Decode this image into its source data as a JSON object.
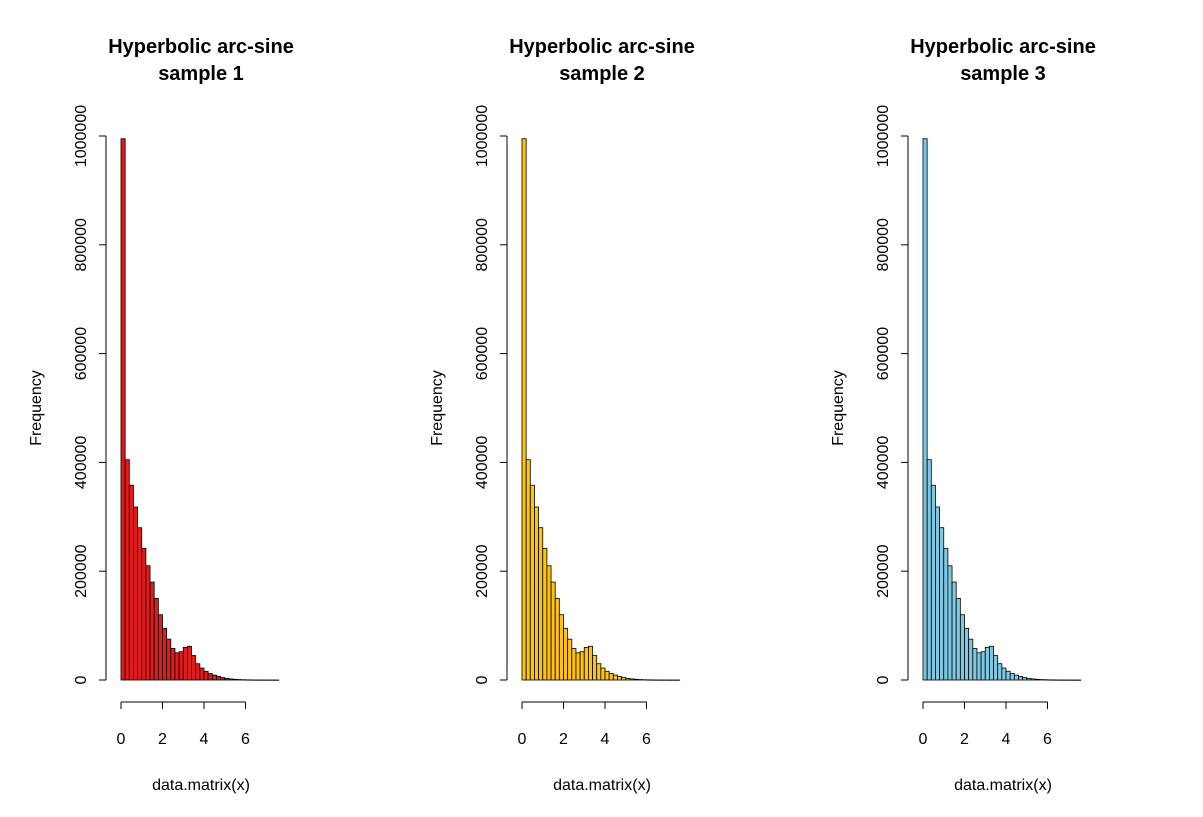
{
  "chart_data": [
    {
      "type": "bar",
      "title_line1": "Hyperbolic arc-sine",
      "title_line2": "sample 1",
      "xlabel": "data.matrix(x)",
      "ylabel": "Frequency",
      "fill_color": "#e41a1c",
      "edge_color": "#000000",
      "x_ticks": [
        0,
        2,
        4,
        6
      ],
      "y_ticks": [
        0,
        200000,
        400000,
        600000,
        800000,
        1000000
      ],
      "ylim": [
        0,
        1000000
      ],
      "bin_width": 0.2,
      "bin_start": 0,
      "values": [
        995000,
        405000,
        358000,
        318000,
        280000,
        242000,
        210000,
        180000,
        150000,
        120000,
        95000,
        75000,
        58000,
        50000,
        52000,
        60000,
        62000,
        45000,
        30000,
        22000,
        16000,
        12000,
        9000,
        6500,
        4500,
        3000,
        2000,
        1300,
        800,
        500,
        300,
        200,
        120,
        80,
        50,
        30,
        20,
        10
      ]
    },
    {
      "type": "bar",
      "title_line1": "Hyperbolic arc-sine",
      "title_line2": "sample 2",
      "xlabel": "data.matrix(x)",
      "ylabel": "Frequency",
      "fill_color": "#ffc20e",
      "edge_color": "#000000",
      "x_ticks": [
        0,
        2,
        4,
        6
      ],
      "y_ticks": [
        0,
        200000,
        400000,
        600000,
        800000,
        1000000
      ],
      "ylim": [
        0,
        1000000
      ],
      "bin_width": 0.2,
      "bin_start": 0,
      "values": [
        995000,
        405000,
        358000,
        318000,
        280000,
        242000,
        210000,
        180000,
        150000,
        120000,
        95000,
        75000,
        58000,
        50000,
        52000,
        60000,
        62000,
        45000,
        30000,
        22000,
        16000,
        12000,
        9000,
        6500,
        4500,
        3000,
        2000,
        1300,
        800,
        500,
        300,
        200,
        120,
        80,
        50,
        30,
        20,
        10
      ]
    },
    {
      "type": "bar",
      "title_line1": "Hyperbolic arc-sine",
      "title_line2": "sample 3",
      "xlabel": "data.matrix(x)",
      "ylabel": "Frequency",
      "fill_color": "#7ec8e3",
      "edge_color": "#000000",
      "x_ticks": [
        0,
        2,
        4,
        6
      ],
      "y_ticks": [
        0,
        200000,
        400000,
        600000,
        800000,
        1000000
      ],
      "ylim": [
        0,
        1000000
      ],
      "bin_width": 0.2,
      "bin_start": 0,
      "values": [
        995000,
        405000,
        358000,
        318000,
        280000,
        242000,
        210000,
        180000,
        150000,
        120000,
        95000,
        75000,
        58000,
        50000,
        52000,
        60000,
        62000,
        45000,
        30000,
        22000,
        16000,
        12000,
        9000,
        6500,
        4500,
        3000,
        2000,
        1300,
        800,
        500,
        300,
        200,
        120,
        80,
        50,
        30,
        20,
        10
      ]
    }
  ]
}
